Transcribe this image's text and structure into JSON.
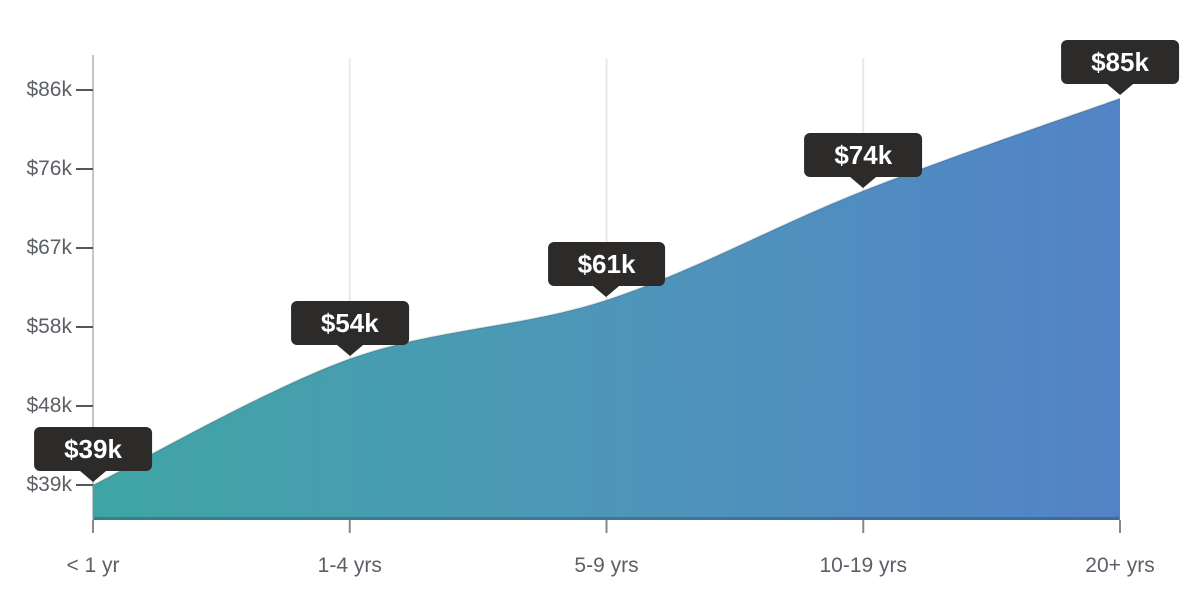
{
  "chart_data": {
    "type": "area",
    "categories": [
      "< 1 yr",
      "1-4 yrs",
      "5-9 yrs",
      "10-19 yrs",
      "20+ yrs"
    ],
    "values": [
      39,
      54,
      61,
      74,
      85
    ],
    "point_labels": [
      "$39k",
      "$54k",
      "$61k",
      "$74k",
      "$85k"
    ],
    "y_ticks": [
      "$39k",
      "$48k",
      "$58k",
      "$67k",
      "$76k",
      "$86k"
    ],
    "y_tick_values": [
      39,
      48,
      58,
      67,
      76,
      86
    ],
    "xlabel": "",
    "ylabel": "",
    "title": "",
    "ylim": [
      39,
      86
    ],
    "grid": "vertical",
    "legend": "none",
    "colors": {
      "area_gradient_start": "#3fa5a4",
      "area_gradient_mid": "#4e96b9",
      "area_gradient_end": "#5283c7",
      "tooltip_bg": "#2d2b2a",
      "tooltip_text": "#ffffff",
      "axis_line": "#c3c7cb",
      "gridline": "#e9e9e9",
      "y_tick_mark": "#54585d",
      "x_tick_mark": "#85888c",
      "label_text": "#5c6066"
    }
  }
}
